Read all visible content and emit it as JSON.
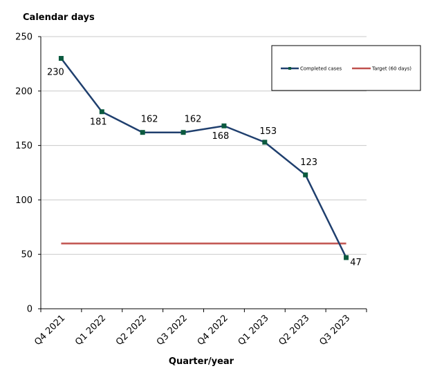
{
  "chart_data": {
    "type": "line",
    "title": "",
    "ylabel": "Calendar days",
    "xlabel": "Quarter/year",
    "categories": [
      "Q4 2021",
      "Q1 2022",
      "Q2 2022",
      "Q3 2022",
      "Q4 2022",
      "Q1 2023",
      "Q2 2023",
      "Q3 2023"
    ],
    "ylim": [
      0,
      250
    ],
    "yticks": [
      0,
      50,
      100,
      150,
      200,
      250
    ],
    "grid": true,
    "legend_position": "top-right",
    "series": [
      {
        "name": "Completed cases",
        "values": [
          230,
          181,
          162,
          162,
          168,
          153,
          123,
          47
        ],
        "color": "#1f3f6e",
        "marker_color": "#0b5a3f",
        "data_labels": [
          "230",
          "181",
          "162",
          "162",
          "168",
          "153",
          "123",
          "47"
        ]
      },
      {
        "name": "Target (60 days)",
        "values": [
          60,
          60,
          60,
          60,
          60,
          60,
          60,
          60
        ],
        "color": "#c0504d"
      }
    ]
  }
}
